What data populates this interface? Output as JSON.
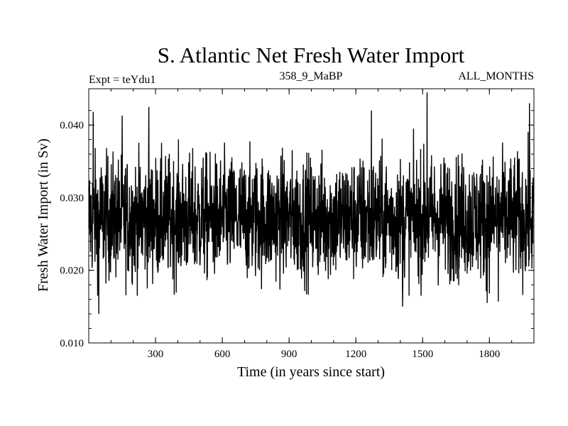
{
  "chart_data": {
    "type": "line",
    "title": "S. Atlantic Net Fresh Water Import",
    "subtitle_left": "Expt = teYdu1",
    "subtitle_center": "358_9_MaBP",
    "subtitle_right": "ALL_MONTHS",
    "xlabel": "Time (in years since start)",
    "ylabel": "Fresh Water Import (in Sv)",
    "xlim": [
      0,
      2000
    ],
    "ylim": [
      0.01,
      0.045
    ],
    "x_ticks": [
      300,
      600,
      900,
      1200,
      1500,
      1800
    ],
    "x_tick_labels": [
      "300",
      "600",
      "900",
      "1200",
      "1500",
      "1800"
    ],
    "y_ticks": [
      0.01,
      0.02,
      0.03,
      0.04
    ],
    "y_tick_labels": [
      "0.010",
      "0.020",
      "0.030",
      "0.040"
    ],
    "series": [
      {
        "name": "Fresh Water Import",
        "color": "#000000",
        "mean": 0.0272,
        "n_points": 2000,
        "x_start": 0,
        "x_step": 1,
        "peaks": [
          {
            "x": 20,
            "y": 0.0418
          },
          {
            "x": 150,
            "y": 0.0413
          },
          {
            "x": 270,
            "y": 0.0425
          },
          {
            "x": 1270,
            "y": 0.042
          },
          {
            "x": 1520,
            "y": 0.0445
          },
          {
            "x": 1980,
            "y": 0.043
          }
        ],
        "troughs": [
          {
            "x": 45,
            "y": 0.014
          },
          {
            "x": 1410,
            "y": 0.015
          },
          {
            "x": 1790,
            "y": 0.0155
          },
          {
            "x": 1840,
            "y": 0.0157
          }
        ]
      }
    ]
  }
}
